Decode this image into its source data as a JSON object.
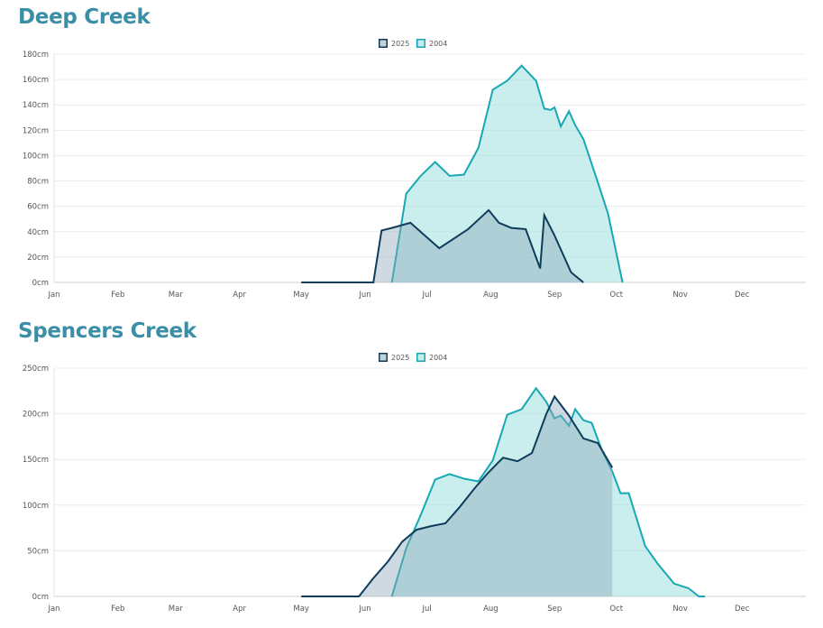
{
  "chart_data": [
    {
      "type": "area",
      "title": "Deep Creek",
      "xlabel": "",
      "ylabel": "",
      "x_unit": "day of year",
      "categories": [
        "Jan",
        "Feb",
        "Mar",
        "Apr",
        "May",
        "Jun",
        "Jul",
        "Aug",
        "Sep",
        "Oct",
        "Nov",
        "Dec"
      ],
      "month_start_days": [
        1,
        32,
        60,
        91,
        121,
        152,
        182,
        213,
        244,
        274,
        305,
        335
      ],
      "yticks": [
        "0cm",
        "20cm",
        "40cm",
        "60cm",
        "80cm",
        "100cm",
        "120cm",
        "140cm",
        "160cm",
        "180cm"
      ],
      "ylim": [
        0,
        180
      ],
      "xlim": [
        1,
        366
      ],
      "grid": true,
      "legend_position": "top-center",
      "series": [
        {
          "name": "2025",
          "color": "#0e3d5c",
          "fill": "#8aa5b7",
          "x": [
            121,
            128,
            135,
            142,
            149,
            156,
            160,
            165,
            174,
            188,
            202,
            212,
            217,
            223,
            230,
            237,
            239,
            244,
            252,
            258
          ],
          "y": [
            0,
            0,
            0,
            0,
            0,
            0,
            41,
            43,
            47,
            27,
            42,
            57,
            47,
            43,
            42,
            11,
            53,
            37,
            8,
            0
          ]
        },
        {
          "name": "2004",
          "color": "#17a9b3",
          "fill": "#9fe0e0",
          "x": [
            165,
            172,
            179,
            186,
            193,
            200,
            207,
            214,
            221,
            228,
            235,
            239,
            242,
            244,
            247,
            251,
            254,
            258,
            265,
            270,
            277
          ],
          "y": [
            0,
            70,
            84,
            95,
            84,
            85,
            106,
            152,
            159,
            171,
            159,
            137,
            136,
            138,
            123,
            135,
            124,
            113,
            79,
            54,
            0
          ]
        }
      ]
    },
    {
      "type": "area",
      "title": "Spencers Creek",
      "xlabel": "",
      "ylabel": "",
      "x_unit": "day of year",
      "categories": [
        "Jan",
        "Feb",
        "Mar",
        "Apr",
        "May",
        "Jun",
        "Jul",
        "Aug",
        "Sep",
        "Oct",
        "Nov",
        "Dec"
      ],
      "month_start_days": [
        1,
        32,
        60,
        91,
        121,
        152,
        182,
        213,
        244,
        274,
        305,
        335
      ],
      "yticks": [
        "0cm",
        "50cm",
        "100cm",
        "150cm",
        "200cm",
        "250cm"
      ],
      "ylim": [
        0,
        250
      ],
      "xlim": [
        1,
        366
      ],
      "grid": true,
      "legend_position": "top-center",
      "series": [
        {
          "name": "2025",
          "color": "#0e3d5c",
          "fill": "#8aa5b7",
          "x": [
            121,
            128,
            135,
            142,
            149,
            156,
            163,
            170,
            177,
            184,
            191,
            198,
            205,
            212,
            219,
            226,
            233,
            240,
            244,
            251,
            258,
            265,
            272
          ],
          "y": [
            0,
            0,
            0,
            0,
            0,
            20,
            38,
            60,
            73,
            77,
            80,
            98,
            118,
            136,
            152,
            148,
            157,
            200,
            219,
            198,
            173,
            168,
            141
          ]
        },
        {
          "name": "2004",
          "color": "#17a9b3",
          "fill": "#9fe0e0",
          "x": [
            165,
            172,
            179,
            186,
            193,
            200,
            207,
            214,
            221,
            228,
            235,
            240,
            244,
            247,
            251,
            254,
            258,
            262,
            267,
            272,
            276,
            280,
            288,
            294,
            302,
            309,
            314,
            317
          ],
          "y": [
            0,
            53,
            89,
            128,
            134,
            129,
            126,
            149,
            199,
            205,
            228,
            213,
            195,
            198,
            187,
            205,
            193,
            190,
            160,
            137,
            113,
            113,
            55,
            36,
            14,
            9,
            0,
            0
          ]
        }
      ]
    }
  ]
}
